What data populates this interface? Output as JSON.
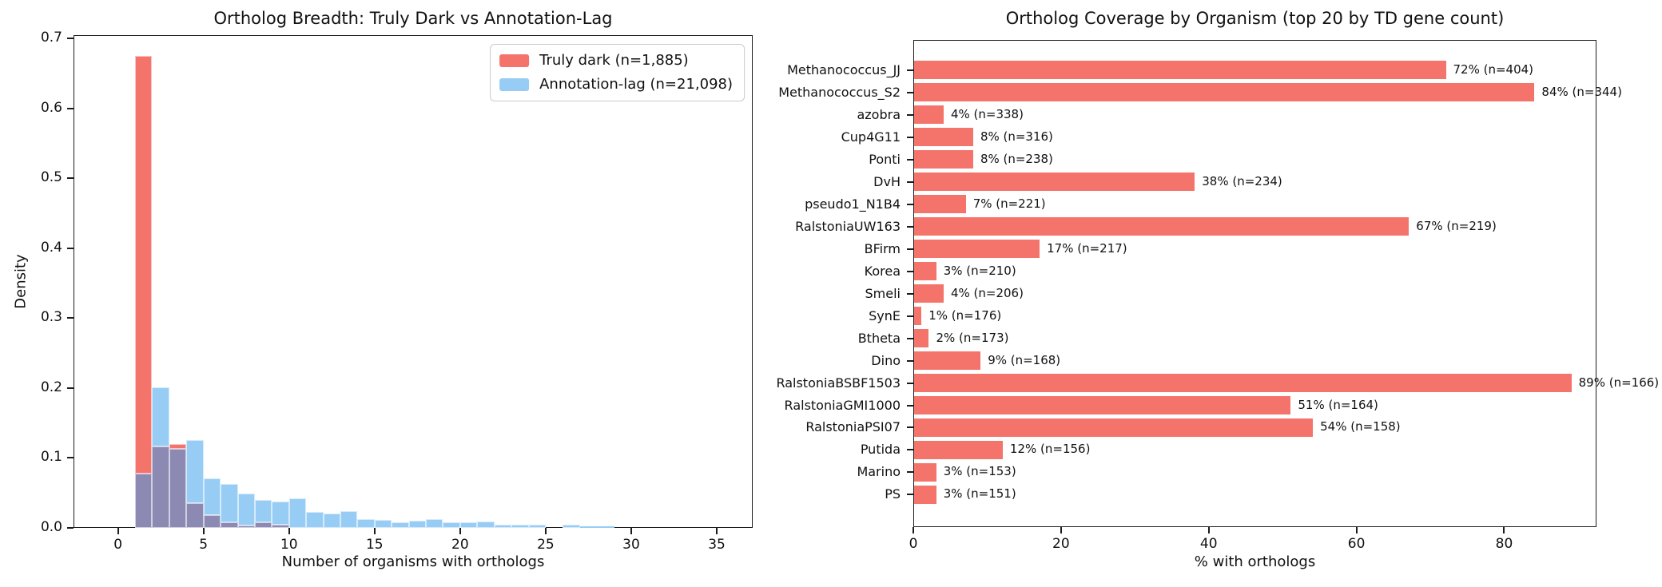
{
  "figure": {
    "background": "#ffffff",
    "text_color": "#111111",
    "spine_color": "#1c1c1c"
  },
  "chart_data": [
    {
      "type": "histogram",
      "title": "Ortholog Breadth: Truly Dark vs Annotation-Lag",
      "xlabel": "Number of organisms with orthologs",
      "ylabel": "Density",
      "xticks": [
        0,
        5,
        10,
        15,
        20,
        25,
        30,
        35
      ],
      "ytick_labels": [
        "0.0",
        "0.1",
        "0.2",
        "0.3",
        "0.4",
        "0.5",
        "0.6",
        "0.7"
      ],
      "yticks": [
        0.0,
        0.1,
        0.2,
        0.3,
        0.4,
        0.5,
        0.6,
        0.7
      ],
      "xlim": [
        -2.6,
        37.1
      ],
      "ylim": [
        0,
        0.705
      ],
      "bin_start": 1,
      "bin_width": 1,
      "grid": false,
      "legend_position": "upper right",
      "overlap_color": "#8c8ab3",
      "bar_edge_color": "rgba(255,255,255,0.6)",
      "legend": [
        {
          "label": "Truly dark (n=1,885)",
          "color": "#f4746b"
        },
        {
          "label": "Annotation-lag (n=21,098)",
          "color": "#97cdf4"
        }
      ],
      "series": [
        {
          "name": "Truly dark",
          "n": "1,885",
          "color": "#f4746b",
          "densities": [
            0.675,
            0.117,
            0.12,
            0.035,
            0.018,
            0.008,
            0.003,
            0.008,
            0.005,
            0,
            0,
            0,
            0,
            0,
            0,
            0,
            0,
            0,
            0,
            0,
            0,
            0,
            0,
            0,
            0,
            0,
            0,
            0
          ]
        },
        {
          "name": "Annotation-lag",
          "n": "21,098",
          "color": "#97cdf4",
          "densities": [
            0.078,
            0.201,
            0.113,
            0.126,
            0.071,
            0.063,
            0.049,
            0.04,
            0.038,
            0.042,
            0.023,
            0.021,
            0.024,
            0.013,
            0.011,
            0.008,
            0.01,
            0.012,
            0.008,
            0.008,
            0.009,
            0.005,
            0.005,
            0.005,
            0,
            0.004,
            0.002,
            0.002
          ]
        }
      ]
    },
    {
      "type": "bar-horizontal",
      "title": "Ortholog Coverage by Organism (top 20 by TD gene count)",
      "xlabel": "% with orthologs",
      "xticks": [
        0,
        20,
        40,
        60,
        80
      ],
      "xlim": [
        0,
        92.5
      ],
      "grid": false,
      "bar_color": "#f4746b",
      "bars": [
        {
          "organism": "Methanococcus_JJ",
          "pct": 72,
          "n": 404,
          "label": "72% (n=404)"
        },
        {
          "organism": "Methanococcus_S2",
          "pct": 84,
          "n": 344,
          "label": "84% (n=344)"
        },
        {
          "organism": "azobra",
          "pct": 4,
          "n": 338,
          "label": "4% (n=338)"
        },
        {
          "organism": "Cup4G11",
          "pct": 8,
          "n": 316,
          "label": "8% (n=316)"
        },
        {
          "organism": "Ponti",
          "pct": 8,
          "n": 238,
          "label": "8% (n=238)"
        },
        {
          "organism": "DvH",
          "pct": 38,
          "n": 234,
          "label": "38% (n=234)"
        },
        {
          "organism": "pseudo1_N1B4",
          "pct": 7,
          "n": 221,
          "label": "7% (n=221)"
        },
        {
          "organism": "RalstoniaUW163",
          "pct": 67,
          "n": 219,
          "label": "67% (n=219)"
        },
        {
          "organism": "BFirm",
          "pct": 17,
          "n": 217,
          "label": "17% (n=217)"
        },
        {
          "organism": "Korea",
          "pct": 3,
          "n": 210,
          "label": "3% (n=210)"
        },
        {
          "organism": "Smeli",
          "pct": 4,
          "n": 206,
          "label": "4% (n=206)"
        },
        {
          "organism": "SynE",
          "pct": 1,
          "n": 176,
          "label": "1% (n=176)"
        },
        {
          "organism": "Btheta",
          "pct": 2,
          "n": 173,
          "label": "2% (n=173)"
        },
        {
          "organism": "Dino",
          "pct": 9,
          "n": 168,
          "label": "9% (n=168)"
        },
        {
          "organism": "RalstoniaBSBF1503",
          "pct": 89,
          "n": 166,
          "label": "89% (n=166)"
        },
        {
          "organism": "RalstoniaGMI1000",
          "pct": 51,
          "n": 164,
          "label": "51% (n=164)"
        },
        {
          "organism": "RalstoniaPSI07",
          "pct": 54,
          "n": 158,
          "label": "54% (n=158)"
        },
        {
          "organism": "Putida",
          "pct": 12,
          "n": 156,
          "label": "12% (n=156)"
        },
        {
          "organism": "Marino",
          "pct": 3,
          "n": 153,
          "label": "3% (n=153)"
        },
        {
          "organism": "PS",
          "pct": 3,
          "n": 151,
          "label": "3% (n=151)"
        }
      ]
    }
  ]
}
